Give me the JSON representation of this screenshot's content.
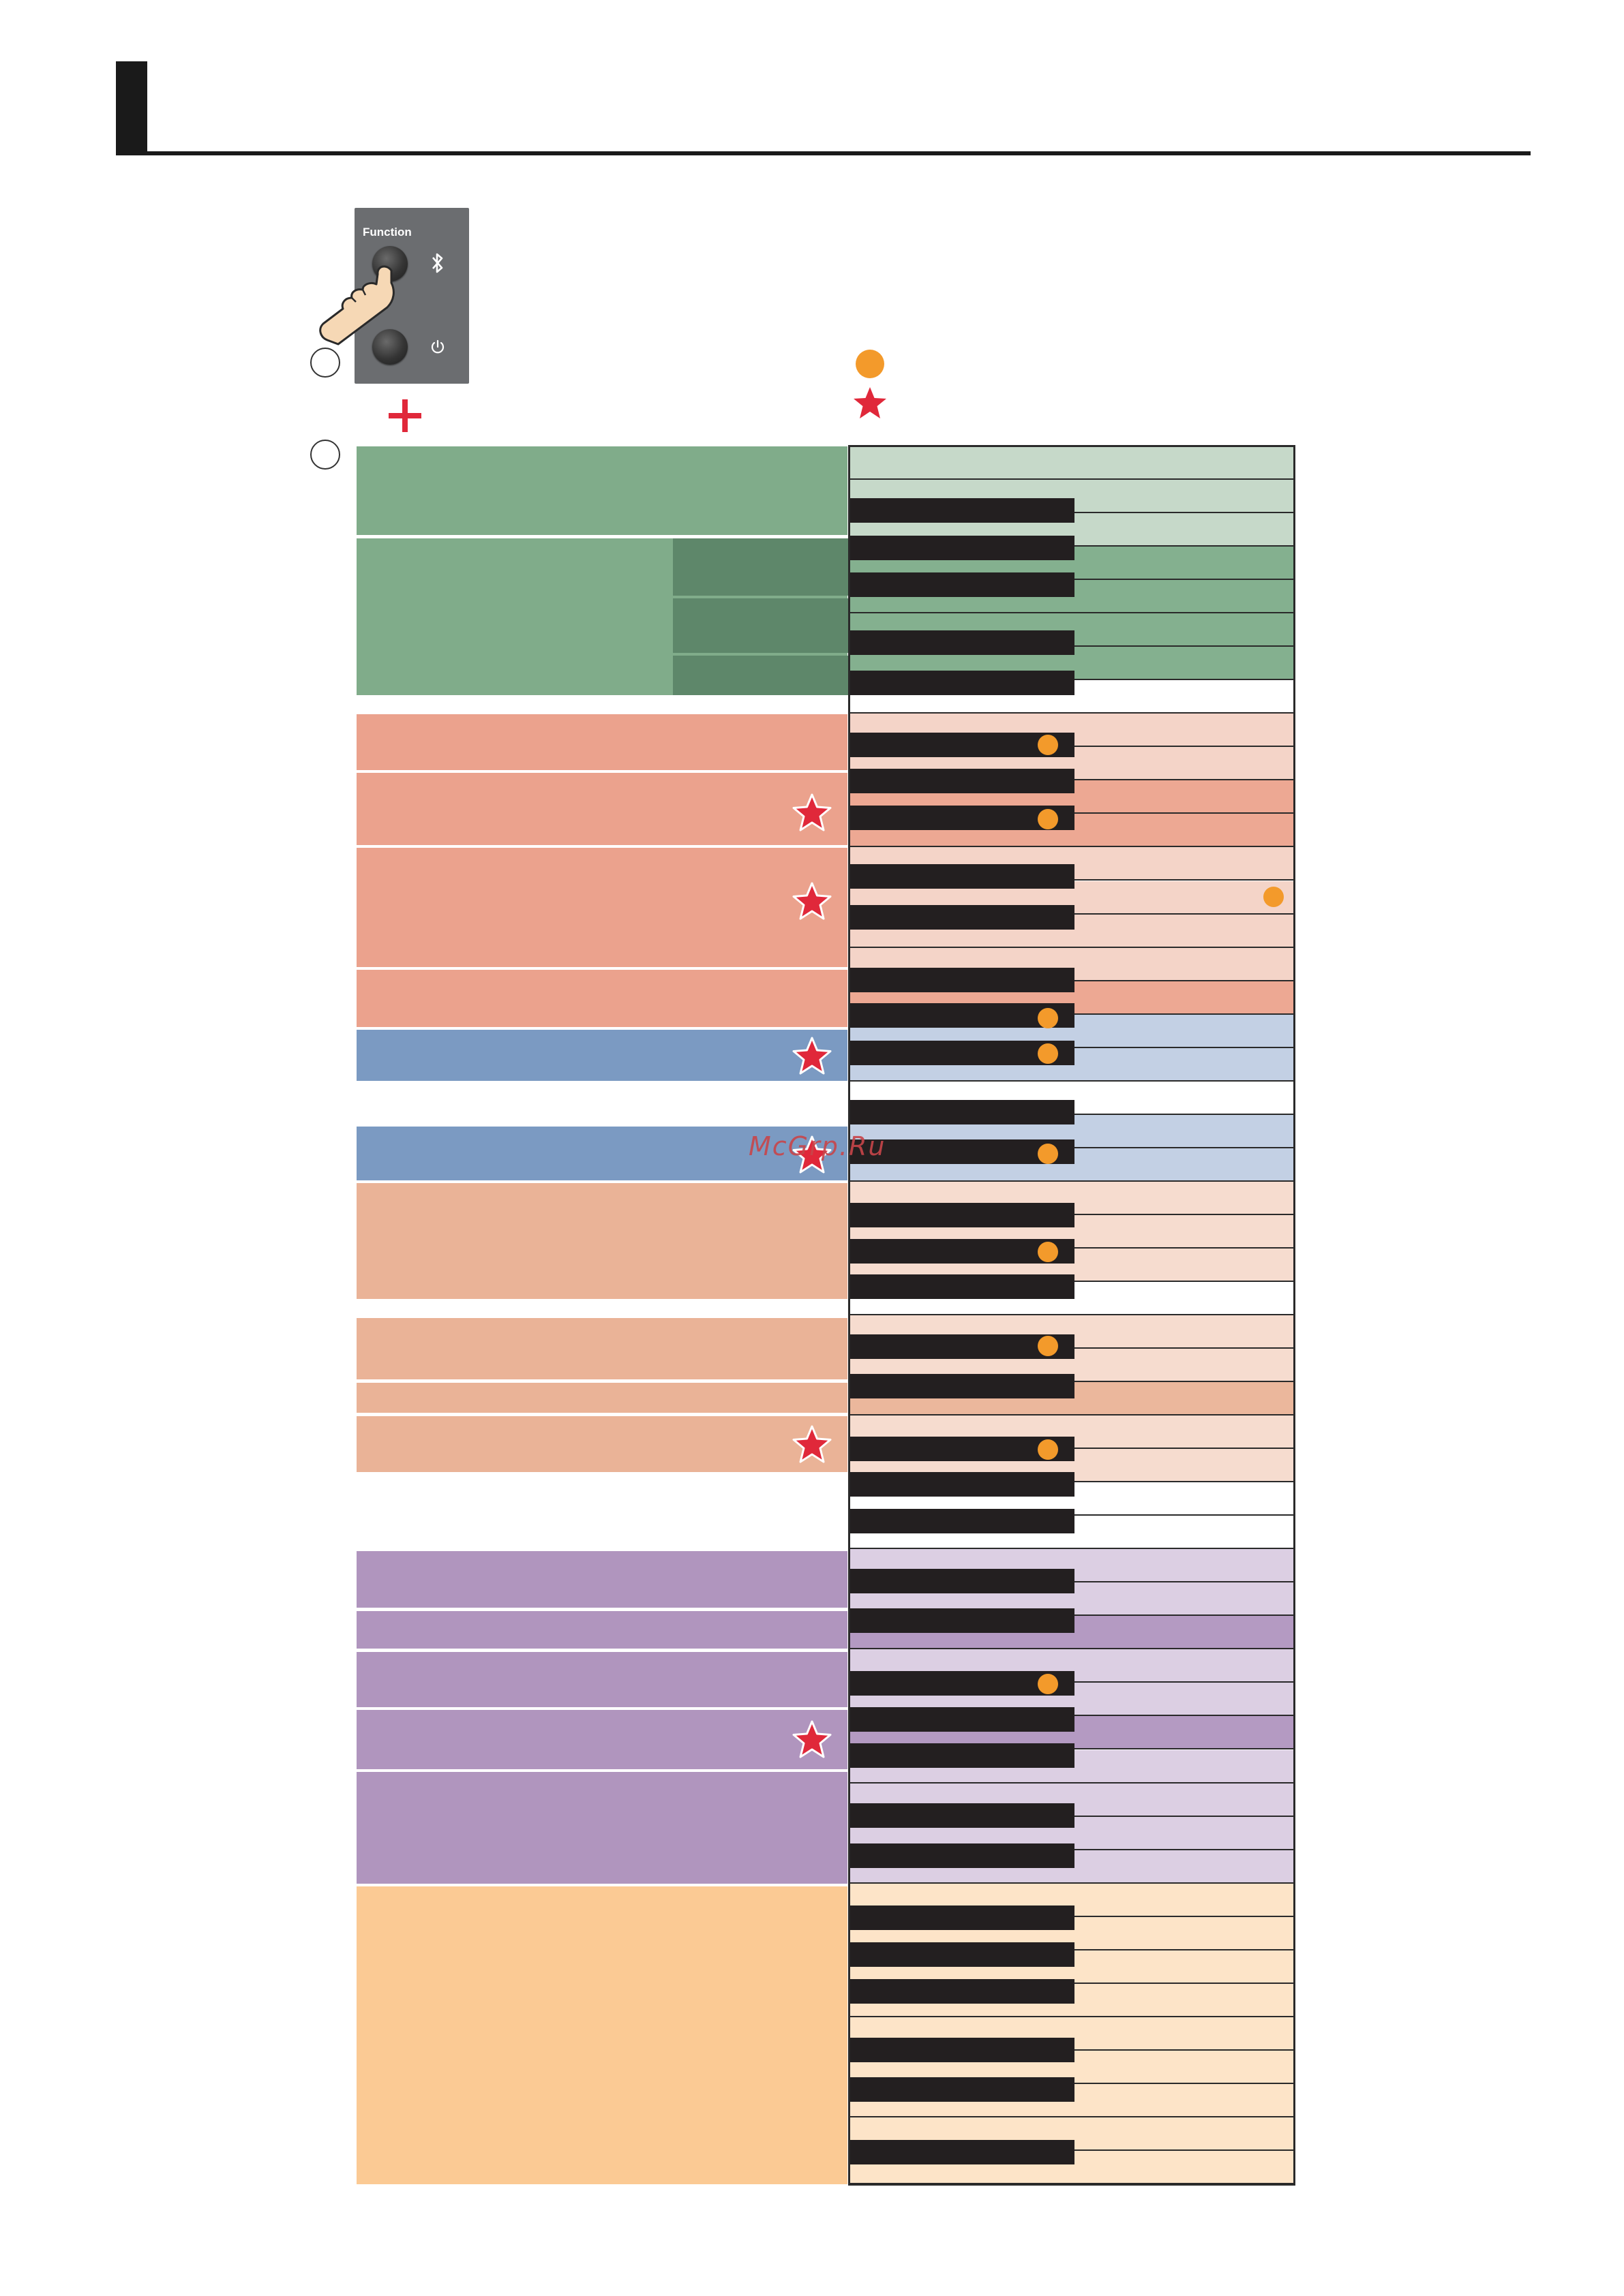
{
  "panel": {
    "function_label": "Function"
  },
  "watermark": "McGrp.Ru",
  "colors": {
    "green": "#80ac8a",
    "green_dark": "#5e876a",
    "salmon": "#eba28d",
    "blue": "#7b9ac2",
    "peach": "#eab397",
    "purple": "#b095be",
    "orange": "#fbca94",
    "dot": "#f39a2b",
    "star": "#e0283a"
  },
  "icons": {
    "bluetooth": "bluetooth-icon",
    "power": "power-icon",
    "hand": "pointing-hand-icon",
    "plus": "plus-icon",
    "star": "star-icon",
    "dot": "dot-icon"
  }
}
